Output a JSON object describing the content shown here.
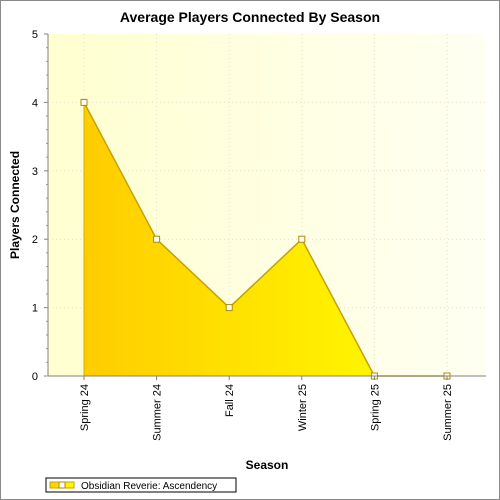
{
  "chart_data": {
    "type": "area",
    "title": "Average Players Connected By Season",
    "xlabel": "Season",
    "ylabel": "Players Connected",
    "categories": [
      "Spring 24",
      "Summer 24",
      "Fall 24",
      "Winter 25",
      "Spring 25",
      "Summer 25"
    ],
    "series": [
      {
        "name": "Obsidian Reverie: Ascendency",
        "values": [
          4,
          2,
          1,
          2,
          0,
          0
        ]
      }
    ],
    "ylim": [
      0,
      5
    ],
    "yticks": [
      "0",
      "1",
      "2",
      "3",
      "4",
      "5"
    ],
    "grid": true,
    "legend_position": "bottom-left",
    "colors": {
      "fill_light": "#ffff00",
      "fill_dark": "#ffcc00",
      "line": "#c8a000",
      "plot_bg_left": "#ffffcc",
      "plot_bg_right": "#ffffee"
    }
  }
}
